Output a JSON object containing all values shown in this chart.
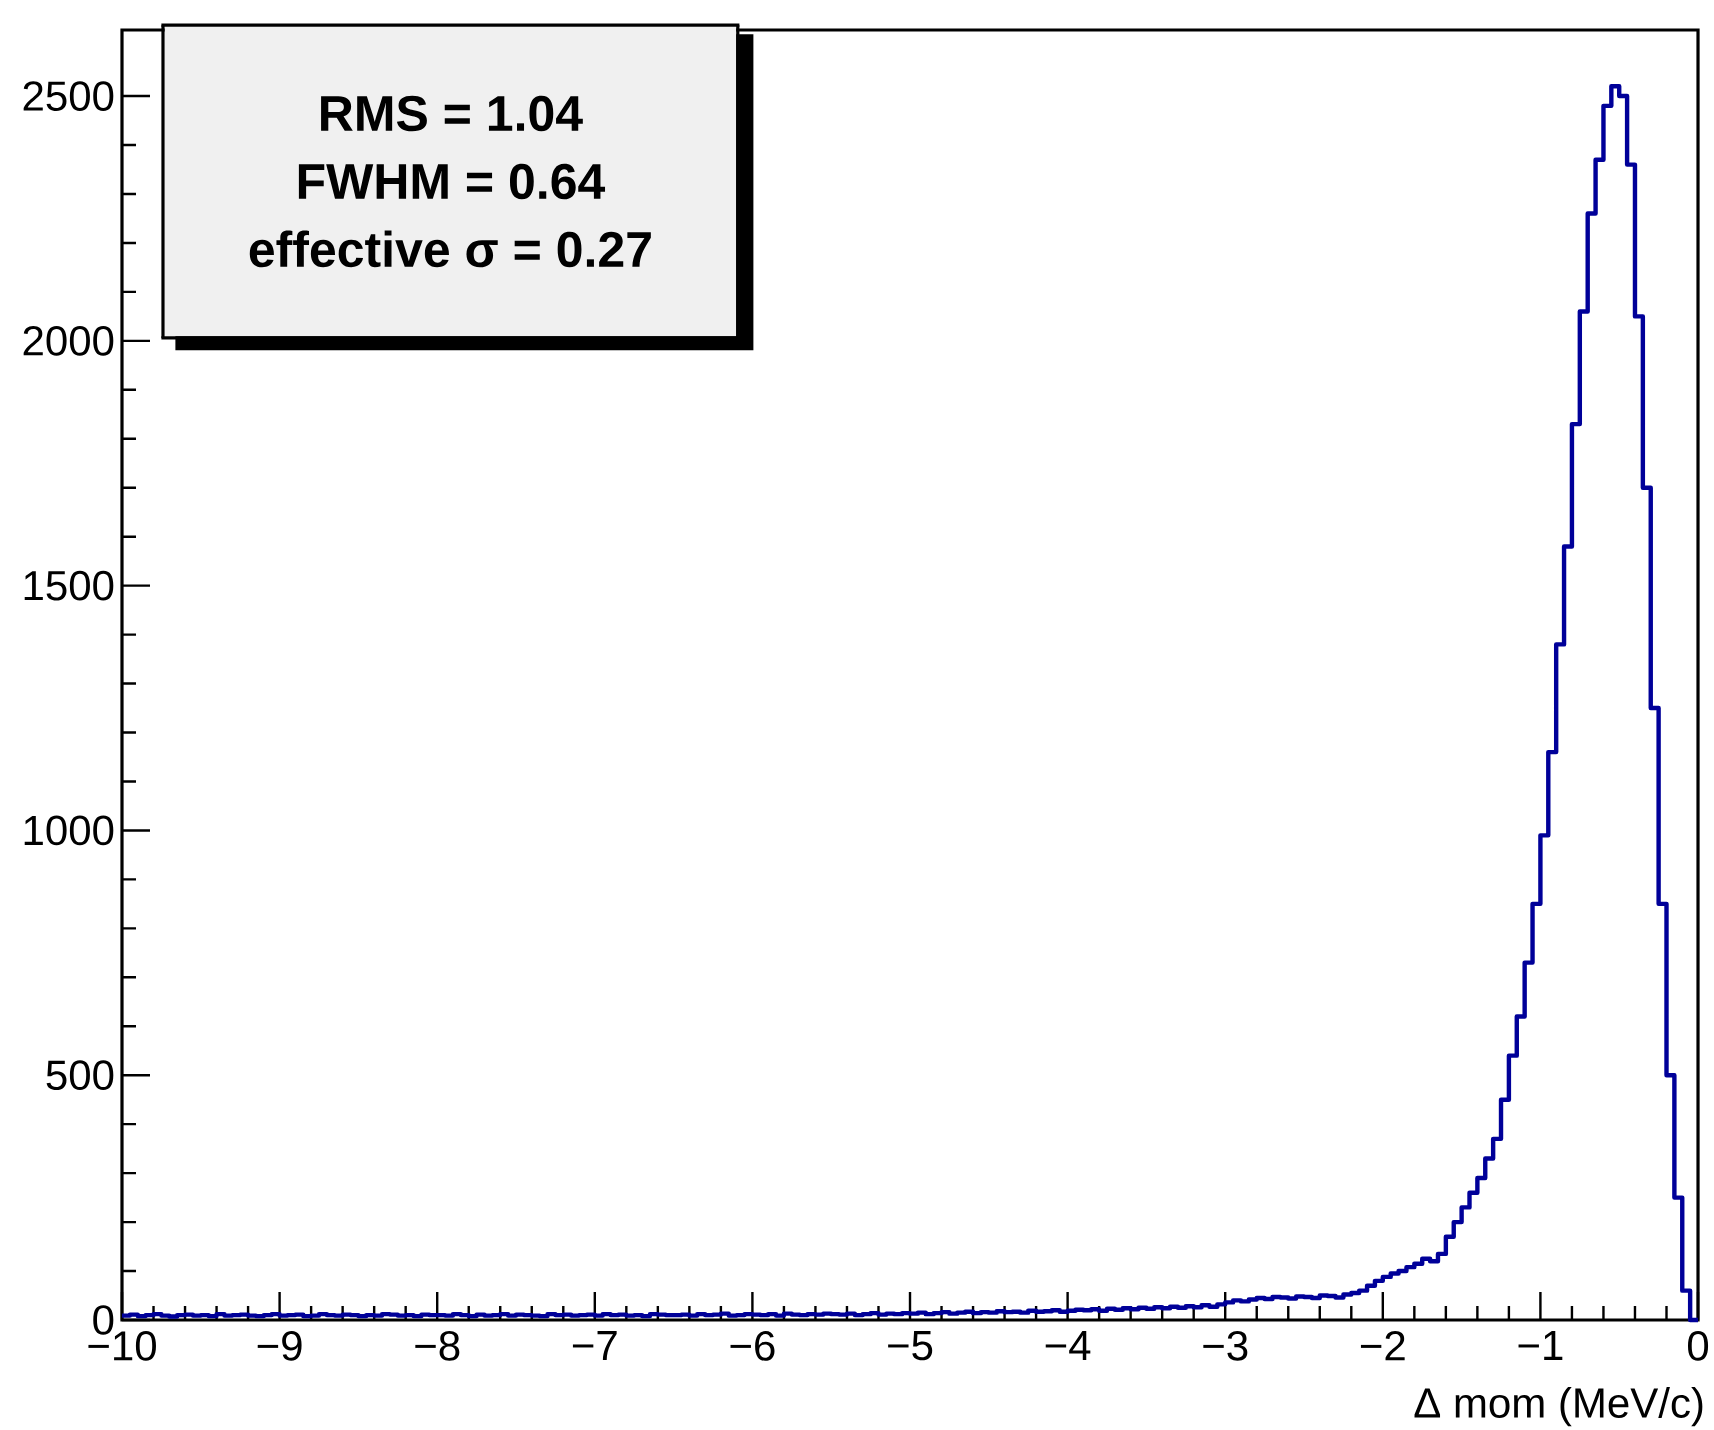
{
  "chart_data": {
    "type": "histogram",
    "xlabel": "Δ mom (MeV/c)",
    "color": "#000099",
    "annotations": [
      "RMS = 1.04",
      "FWHM = 0.64",
      "effective σ = 0.27"
    ],
    "xlim": [
      -10,
      0
    ],
    "ylim": [
      0,
      2635
    ],
    "xticks": [
      {
        "value": -10,
        "label": "−10"
      },
      {
        "value": -9,
        "label": "−9"
      },
      {
        "value": -8,
        "label": "−8"
      },
      {
        "value": -7,
        "label": "−7"
      },
      {
        "value": -6,
        "label": "−6"
      },
      {
        "value": -5,
        "label": "−5"
      },
      {
        "value": -4,
        "label": "−4"
      },
      {
        "value": -3,
        "label": "−3"
      },
      {
        "value": -2,
        "label": "−2"
      },
      {
        "value": -1,
        "label": "−1"
      },
      0
    ],
    "yticks": [
      0,
      500,
      1000,
      1500,
      2000,
      2500
    ],
    "grid": false,
    "bins": [
      -10,
      -9.95,
      -9.9,
      -9.85,
      -9.8,
      -9.75,
      -9.7,
      -9.65,
      -9.6,
      -9.55,
      -9.5,
      -9.45,
      -9.4,
      -9.35,
      -9.3,
      -9.25,
      -9.2,
      -9.15,
      -9.1,
      -9.05,
      -9,
      -8.95,
      -8.9,
      -8.85,
      -8.8,
      -8.75,
      -8.7,
      -8.65,
      -8.6,
      -8.55,
      -8.5,
      -8.45,
      -8.4,
      -8.35,
      -8.3,
      -8.25,
      -8.2,
      -8.15,
      -8.1,
      -8.05,
      -8,
      -7.95,
      -7.9,
      -7.85,
      -7.8,
      -7.75,
      -7.7,
      -7.65,
      -7.6,
      -7.55,
      -7.5,
      -7.45,
      -7.4,
      -7.35,
      -7.3,
      -7.25,
      -7.2,
      -7.15,
      -7.1,
      -7.05,
      -7,
      -6.95,
      -6.9,
      -6.85,
      -6.8,
      -6.75,
      -6.7,
      -6.65,
      -6.6,
      -6.55,
      -6.5,
      -6.45,
      -6.4,
      -6.35,
      -6.3,
      -6.25,
      -6.2,
      -6.15,
      -6.1,
      -6.05,
      -6,
      -5.95,
      -5.9,
      -5.85,
      -5.8,
      -5.75,
      -5.7,
      -5.65,
      -5.6,
      -5.55,
      -5.5,
      -5.45,
      -5.4,
      -5.35,
      -5.3,
      -5.25,
      -5.2,
      -5.15,
      -5.1,
      -5.05,
      -5,
      -4.95,
      -4.9,
      -4.85,
      -4.8,
      -4.75,
      -4.7,
      -4.65,
      -4.6,
      -4.55,
      -4.5,
      -4.45,
      -4.4,
      -4.35,
      -4.3,
      -4.25,
      -4.2,
      -4.15,
      -4.1,
      -4.05,
      -4,
      -3.95,
      -3.9,
      -3.85,
      -3.8,
      -3.75,
      -3.7,
      -3.65,
      -3.6,
      -3.55,
      -3.5,
      -3.45,
      -3.4,
      -3.35,
      -3.3,
      -3.25,
      -3.2,
      -3.15,
      -3.1,
      -3.05,
      -3,
      -2.95,
      -2.9,
      -2.85,
      -2.8,
      -2.75,
      -2.7,
      -2.65,
      -2.6,
      -2.55,
      -2.5,
      -2.45,
      -2.4,
      -2.35,
      -2.3,
      -2.25,
      -2.2,
      -2.15,
      -2.1,
      -2.05,
      -2,
      -1.95,
      -1.9,
      -1.85,
      -1.8,
      -1.75,
      -1.7,
      -1.65,
      -1.6,
      -1.55,
      -1.5,
      -1.45,
      -1.4,
      -1.35,
      -1.3,
      -1.25,
      -1.2,
      -1.15,
      -1.1,
      -1.05,
      -1,
      -0.95,
      -0.9,
      -0.85,
      -0.8,
      -0.75,
      -0.7,
      -0.65,
      -0.6,
      -0.55,
      -0.5,
      -0.45,
      -0.4,
      -0.35,
      -0.3,
      -0.25,
      -0.2,
      -0.15,
      -0.1,
      -0.05,
      0
    ],
    "values": [
      9,
      11,
      8,
      10,
      12,
      9,
      7,
      10,
      11,
      9,
      10,
      8,
      12,
      9,
      10,
      11,
      9,
      8,
      10,
      12,
      9,
      10,
      11,
      8,
      9,
      12,
      10,
      9,
      11,
      10,
      8,
      10,
      9,
      12,
      11,
      9,
      10,
      8,
      11,
      10,
      10,
      9,
      12,
      10,
      8,
      11,
      9,
      10,
      12,
      9,
      11,
      10,
      9,
      8,
      12,
      10,
      11,
      9,
      10,
      11,
      9,
      12,
      10,
      11,
      9,
      10,
      8,
      12,
      11,
      10,
      10,
      11,
      9,
      12,
      10,
      11,
      13,
      9,
      10,
      12,
      11,
      10,
      12,
      9,
      13,
      11,
      10,
      12,
      11,
      13,
      12,
      11,
      13,
      10,
      12,
      14,
      11,
      13,
      12,
      14,
      13,
      15,
      12,
      14,
      16,
      13,
      15,
      17,
      14,
      16,
      15,
      18,
      16,
      17,
      15,
      19,
      17,
      18,
      20,
      17,
      19,
      21,
      20,
      22,
      19,
      23,
      21,
      24,
      22,
      25,
      23,
      26,
      24,
      27,
      25,
      28,
      26,
      30,
      27,
      32,
      36,
      40,
      38,
      42,
      45,
      43,
      47,
      46,
      44,
      48,
      47,
      45,
      50,
      49,
      46,
      52,
      55,
      60,
      70,
      80,
      88,
      95,
      100,
      108,
      115,
      125,
      120,
      135,
      170,
      200,
      230,
      260,
      290,
      330,
      370,
      450,
      540,
      620,
      730,
      850,
      990,
      1160,
      1380,
      1580,
      1830,
      2060,
      2260,
      2370,
      2480,
      2520,
      2500,
      2360,
      2050,
      1700,
      1250,
      850,
      500,
      250,
      60,
      0
    ]
  }
}
